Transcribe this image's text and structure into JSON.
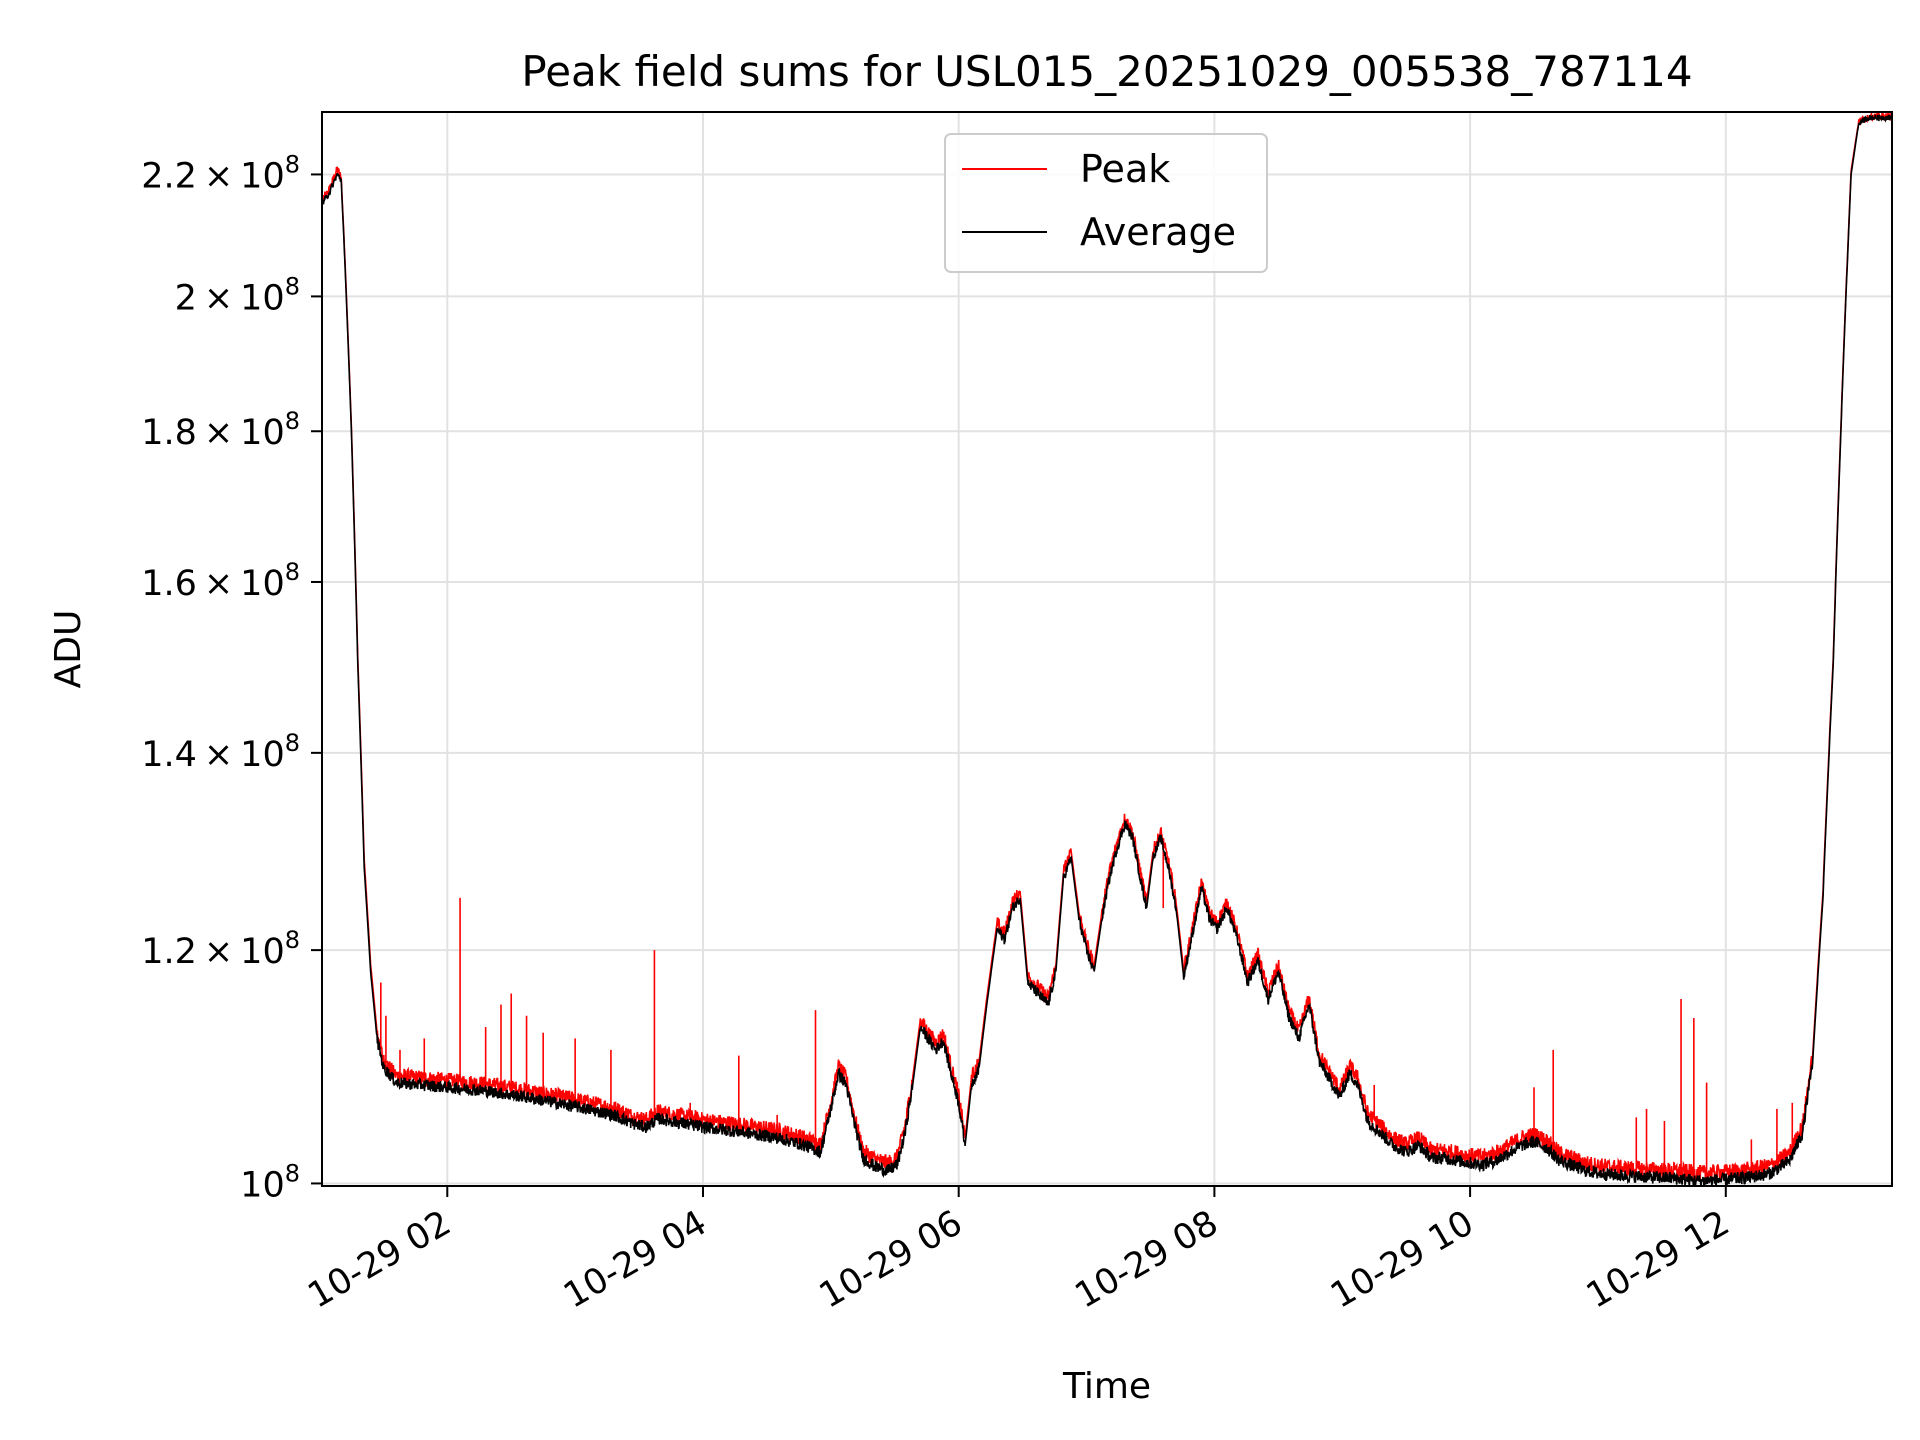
{
  "chart_data": {
    "type": "line",
    "title": "Peak field sums for USL015_20251029_005538_787114",
    "xlabel": "Time",
    "ylabel": "ADU",
    "yscale": "log",
    "xlim_hours": [
      1.02,
      13.3
    ],
    "ylim": [
      99800000,
      231000000
    ],
    "grid": true,
    "legend": {
      "position": "top-center",
      "entries": [
        "Peak",
        "Average"
      ]
    },
    "x_ticks": [
      {
        "hour": 2,
        "label": "10-29 02"
      },
      {
        "hour": 4,
        "label": "10-29 04"
      },
      {
        "hour": 6,
        "label": "10-29 06"
      },
      {
        "hour": 8,
        "label": "10-29 08"
      },
      {
        "hour": 10,
        "label": "10-29 10"
      },
      {
        "hour": 12,
        "label": "10-29 12"
      }
    ],
    "y_ticks": [
      {
        "value": 100000000,
        "mant": "",
        "exp": "8"
      },
      {
        "value": 120000000,
        "mant": "1.2",
        "exp": "8"
      },
      {
        "value": 140000000,
        "mant": "1.4",
        "exp": "8"
      },
      {
        "value": 160000000,
        "mant": "1.6",
        "exp": "8"
      },
      {
        "value": 180000000,
        "mant": "1.8",
        "exp": "8"
      },
      {
        "value": 200000000,
        "mant": "2",
        "exp": "8"
      },
      {
        "value": 220000000,
        "mant": "2.2",
        "exp": "8"
      }
    ],
    "series": [
      {
        "name": "Average",
        "color": "#000000",
        "points": [
          [
            1.02,
            215.0
          ],
          [
            1.08,
            217.0
          ],
          [
            1.14,
            220.0
          ],
          [
            1.17,
            219.0
          ],
          [
            1.2,
            205.0
          ],
          [
            1.25,
            180.0
          ],
          [
            1.3,
            150.0
          ],
          [
            1.35,
            128.0
          ],
          [
            1.4,
            118.0
          ],
          [
            1.45,
            112.0
          ],
          [
            1.5,
            109.5
          ],
          [
            1.6,
            108.2
          ],
          [
            1.8,
            108.0
          ],
          [
            2.0,
            107.8
          ],
          [
            2.3,
            107.5
          ],
          [
            2.6,
            107.0
          ],
          [
            3.0,
            106.2
          ],
          [
            3.3,
            105.5
          ],
          [
            3.45,
            104.8
          ],
          [
            3.55,
            104.5
          ],
          [
            3.65,
            105.2
          ],
          [
            3.8,
            104.9
          ],
          [
            4.0,
            104.5
          ],
          [
            4.3,
            104.1
          ],
          [
            4.6,
            103.6
          ],
          [
            4.8,
            103.0
          ],
          [
            4.92,
            102.5
          ],
          [
            5.0,
            106.0
          ],
          [
            5.06,
            109.0
          ],
          [
            5.12,
            108.0
          ],
          [
            5.18,
            105.0
          ],
          [
            5.25,
            102.0
          ],
          [
            5.35,
            101.3
          ],
          [
            5.45,
            101.0
          ],
          [
            5.52,
            101.5
          ],
          [
            5.58,
            104.0
          ],
          [
            5.64,
            108.0
          ],
          [
            5.7,
            113.0
          ],
          [
            5.76,
            112.0
          ],
          [
            5.82,
            111.0
          ],
          [
            5.88,
            111.8
          ],
          [
            5.94,
            109.0
          ],
          [
            6.0,
            106.5
          ],
          [
            6.05,
            103.0
          ],
          [
            6.1,
            108.0
          ],
          [
            6.16,
            109.5
          ],
          [
            6.22,
            115.0
          ],
          [
            6.3,
            122.0
          ],
          [
            6.36,
            121.0
          ],
          [
            6.42,
            124.0
          ],
          [
            6.48,
            125.0
          ],
          [
            6.54,
            117.0
          ],
          [
            6.62,
            116.0
          ],
          [
            6.7,
            115.0
          ],
          [
            6.76,
            118.0
          ],
          [
            6.82,
            127.0
          ],
          [
            6.88,
            129.0
          ],
          [
            6.94,
            123.0
          ],
          [
            7.0,
            120.0
          ],
          [
            7.06,
            118.0
          ],
          [
            7.12,
            123.0
          ],
          [
            7.18,
            127.0
          ],
          [
            7.24,
            130.0
          ],
          [
            7.3,
            132.5
          ],
          [
            7.36,
            131.0
          ],
          [
            7.42,
            127.0
          ],
          [
            7.47,
            124.0
          ],
          [
            7.52,
            129.0
          ],
          [
            7.58,
            131.0
          ],
          [
            7.64,
            128.0
          ],
          [
            7.7,
            124.0
          ],
          [
            7.76,
            117.5
          ],
          [
            7.82,
            121.0
          ],
          [
            7.9,
            126.0
          ],
          [
            7.96,
            123.0
          ],
          [
            8.02,
            122.0
          ],
          [
            8.1,
            124.0
          ],
          [
            8.18,
            121.0
          ],
          [
            8.26,
            117.0
          ],
          [
            8.34,
            119.0
          ],
          [
            8.42,
            115.5
          ],
          [
            8.5,
            118.0
          ],
          [
            8.58,
            114.0
          ],
          [
            8.66,
            112.0
          ],
          [
            8.74,
            115.0
          ],
          [
            8.82,
            110.0
          ],
          [
            8.9,
            108.5
          ],
          [
            8.98,
            107.0
          ],
          [
            9.06,
            109.0
          ],
          [
            9.12,
            108.0
          ],
          [
            9.2,
            105.0
          ],
          [
            9.3,
            104.0
          ],
          [
            9.4,
            103.0
          ],
          [
            9.5,
            102.5
          ],
          [
            9.6,
            103.0
          ],
          [
            9.7,
            102.0
          ],
          [
            9.8,
            102.0
          ],
          [
            9.9,
            101.8
          ],
          [
            10.0,
            101.6
          ],
          [
            10.1,
            101.5
          ],
          [
            10.2,
            101.8
          ],
          [
            10.3,
            102.4
          ],
          [
            10.4,
            103.0
          ],
          [
            10.5,
            103.3
          ],
          [
            10.6,
            102.8
          ],
          [
            10.7,
            101.8
          ],
          [
            10.8,
            101.4
          ],
          [
            10.9,
            101.0
          ],
          [
            11.0,
            100.8
          ],
          [
            11.2,
            100.6
          ],
          [
            11.4,
            100.5
          ],
          [
            11.6,
            100.4
          ],
          [
            11.8,
            100.2
          ],
          [
            12.0,
            100.3
          ],
          [
            12.2,
            100.5
          ],
          [
            12.35,
            100.8
          ],
          [
            12.5,
            101.8
          ],
          [
            12.6,
            104.0
          ],
          [
            12.68,
            110.0
          ],
          [
            12.76,
            125.0
          ],
          [
            12.84,
            150.0
          ],
          [
            12.92,
            190.0
          ],
          [
            12.98,
            220.0
          ],
          [
            13.04,
            229.0
          ],
          [
            13.12,
            230.0
          ],
          [
            13.3,
            230.0
          ]
        ]
      },
      {
        "name": "Peak",
        "color": "#ff0000",
        "points": [
          [
            1.02,
            215.5
          ],
          [
            1.08,
            217.6
          ],
          [
            1.14,
            221.0
          ],
          [
            1.17,
            219.5
          ],
          [
            1.2,
            205.6
          ],
          [
            1.25,
            180.6
          ],
          [
            1.3,
            150.7
          ],
          [
            1.35,
            128.8
          ],
          [
            1.4,
            118.7
          ],
          [
            1.45,
            112.6
          ],
          [
            1.5,
            110.1
          ],
          [
            1.6,
            108.8
          ],
          [
            1.8,
            108.6
          ],
          [
            2.0,
            108.4
          ],
          [
            2.3,
            108.1
          ],
          [
            2.6,
            107.6
          ],
          [
            3.0,
            106.8
          ],
          [
            3.3,
            106.1
          ],
          [
            3.45,
            105.4
          ],
          [
            3.55,
            105.1
          ],
          [
            3.65,
            105.8
          ],
          [
            3.8,
            105.5
          ],
          [
            4.0,
            105.1
          ],
          [
            4.3,
            104.7
          ],
          [
            4.6,
            104.2
          ],
          [
            4.8,
            103.6
          ],
          [
            4.92,
            103.1
          ],
          [
            5.0,
            106.6
          ],
          [
            5.06,
            109.6
          ],
          [
            5.12,
            108.6
          ],
          [
            5.18,
            105.6
          ],
          [
            5.25,
            102.6
          ],
          [
            5.35,
            101.9
          ],
          [
            5.45,
            101.6
          ],
          [
            5.52,
            102.1
          ],
          [
            5.58,
            104.6
          ],
          [
            5.64,
            108.6
          ],
          [
            5.7,
            113.6
          ],
          [
            5.76,
            112.6
          ],
          [
            5.82,
            111.6
          ],
          [
            5.88,
            112.4
          ],
          [
            5.94,
            109.6
          ],
          [
            6.0,
            107.1
          ],
          [
            6.05,
            103.6
          ],
          [
            6.1,
            108.6
          ],
          [
            6.16,
            110.1
          ],
          [
            6.22,
            115.6
          ],
          [
            6.3,
            122.6
          ],
          [
            6.36,
            121.6
          ],
          [
            6.42,
            124.6
          ],
          [
            6.48,
            125.6
          ],
          [
            6.54,
            117.6
          ],
          [
            6.62,
            116.6
          ],
          [
            6.7,
            115.6
          ],
          [
            6.76,
            118.6
          ],
          [
            6.82,
            127.6
          ],
          [
            6.88,
            129.6
          ],
          [
            6.94,
            123.6
          ],
          [
            7.0,
            120.6
          ],
          [
            7.06,
            118.6
          ],
          [
            7.12,
            123.6
          ],
          [
            7.18,
            127.6
          ],
          [
            7.24,
            130.6
          ],
          [
            7.3,
            133.1
          ],
          [
            7.36,
            131.6
          ],
          [
            7.42,
            127.6
          ],
          [
            7.47,
            124.6
          ],
          [
            7.52,
            129.6
          ],
          [
            7.58,
            131.6
          ],
          [
            7.64,
            128.6
          ],
          [
            7.7,
            124.6
          ],
          [
            7.76,
            118.1
          ],
          [
            7.82,
            121.6
          ],
          [
            7.9,
            126.6
          ],
          [
            7.96,
            123.6
          ],
          [
            8.02,
            122.6
          ],
          [
            8.1,
            124.6
          ],
          [
            8.18,
            121.6
          ],
          [
            8.26,
            117.6
          ],
          [
            8.34,
            119.6
          ],
          [
            8.42,
            116.1
          ],
          [
            8.5,
            118.6
          ],
          [
            8.58,
            114.6
          ],
          [
            8.66,
            112.6
          ],
          [
            8.74,
            115.6
          ],
          [
            8.82,
            110.6
          ],
          [
            8.9,
            109.1
          ],
          [
            8.98,
            107.6
          ],
          [
            9.06,
            109.6
          ],
          [
            9.12,
            108.6
          ],
          [
            9.2,
            105.6
          ],
          [
            9.3,
            104.6
          ],
          [
            9.4,
            103.6
          ],
          [
            9.5,
            103.1
          ],
          [
            9.6,
            103.6
          ],
          [
            9.7,
            102.6
          ],
          [
            9.8,
            102.6
          ],
          [
            9.9,
            102.4
          ],
          [
            10.0,
            102.2
          ],
          [
            10.1,
            102.1
          ],
          [
            10.2,
            102.4
          ],
          [
            10.3,
            103.0
          ],
          [
            10.4,
            103.6
          ],
          [
            10.5,
            103.9
          ],
          [
            10.6,
            103.4
          ],
          [
            10.7,
            102.4
          ],
          [
            10.8,
            102.0
          ],
          [
            10.9,
            101.6
          ],
          [
            11.0,
            101.4
          ],
          [
            11.2,
            101.2
          ],
          [
            11.4,
            101.1
          ],
          [
            11.6,
            101.0
          ],
          [
            11.8,
            100.8
          ],
          [
            12.0,
            100.9
          ],
          [
            12.2,
            101.1
          ],
          [
            12.35,
            101.4
          ],
          [
            12.5,
            102.4
          ],
          [
            12.6,
            104.6
          ],
          [
            12.68,
            110.6
          ],
          [
            12.76,
            125.6
          ],
          [
            12.84,
            150.6
          ],
          [
            12.92,
            190.6
          ],
          [
            12.98,
            220.6
          ],
          [
            13.04,
            229.3
          ],
          [
            13.12,
            230.2
          ],
          [
            13.3,
            230.2
          ]
        ],
        "spikes": [
          [
            1.48,
            117.0
          ],
          [
            1.52,
            114.0
          ],
          [
            1.63,
            111.0
          ],
          [
            1.82,
            112.0
          ],
          [
            2.1,
            125.0
          ],
          [
            2.3,
            113.0
          ],
          [
            2.42,
            115.0
          ],
          [
            2.5,
            116.0
          ],
          [
            2.62,
            114.0
          ],
          [
            2.75,
            112.5
          ],
          [
            3.0,
            112.0
          ],
          [
            3.28,
            111.0
          ],
          [
            3.62,
            120.0
          ],
          [
            3.9,
            106.5
          ],
          [
            4.28,
            110.5
          ],
          [
            4.58,
            105.5
          ],
          [
            4.88,
            114.5
          ],
          [
            7.6,
            124.0
          ],
          [
            9.25,
            108.0
          ],
          [
            10.5,
            107.8
          ],
          [
            10.65,
            111.0
          ],
          [
            11.3,
            105.3
          ],
          [
            11.38,
            106.0
          ],
          [
            11.52,
            105.0
          ],
          [
            11.65,
            115.5
          ],
          [
            11.75,
            113.8
          ],
          [
            11.85,
            108.2
          ],
          [
            12.2,
            103.5
          ],
          [
            12.4,
            106.0
          ],
          [
            12.52,
            106.5
          ]
        ]
      }
    ]
  }
}
